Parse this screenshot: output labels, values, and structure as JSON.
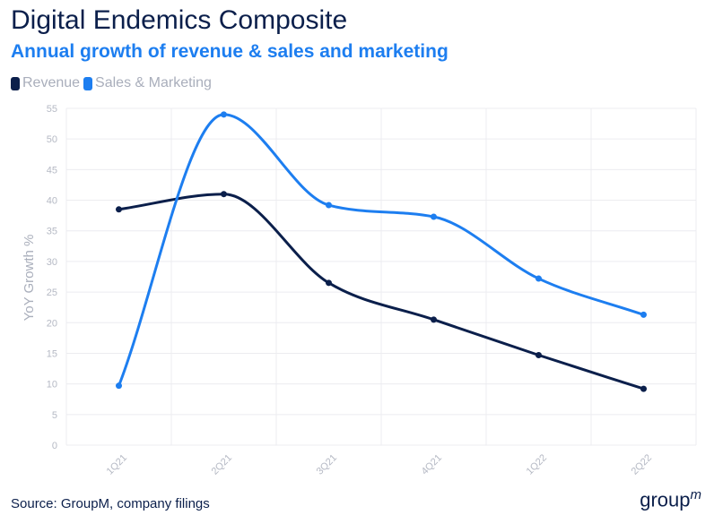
{
  "header": {
    "title": "Digital Endemics Composite",
    "subtitle": "Annual growth of revenue & sales and marketing"
  },
  "footer": {
    "source": "Source: GroupM, company filings",
    "logo_main": "group",
    "logo_sup": "m"
  },
  "chart_data": {
    "type": "line",
    "title": "Annual growth of revenue & sales and marketing",
    "ylabel": "YoY Growth %",
    "xlabel": "",
    "categories": [
      "1Q21",
      "2Q21",
      "3Q21",
      "4Q21",
      "1Q22",
      "2Q22"
    ],
    "ylim": [
      0,
      55
    ],
    "yticks": [
      0,
      5,
      10,
      15,
      20,
      25,
      30,
      35,
      40,
      45,
      50,
      55
    ],
    "grid": true,
    "legend_position": "top-left",
    "series": [
      {
        "name": "Revenue",
        "color": "#0b1f4b",
        "values": [
          38.5,
          41,
          26.5,
          20.5,
          14.7,
          9.2
        ]
      },
      {
        "name": "Sales & Marketing",
        "color": "#1d7ef0",
        "values": [
          9.7,
          54,
          39.2,
          37.3,
          27.2,
          21.3
        ]
      }
    ]
  }
}
